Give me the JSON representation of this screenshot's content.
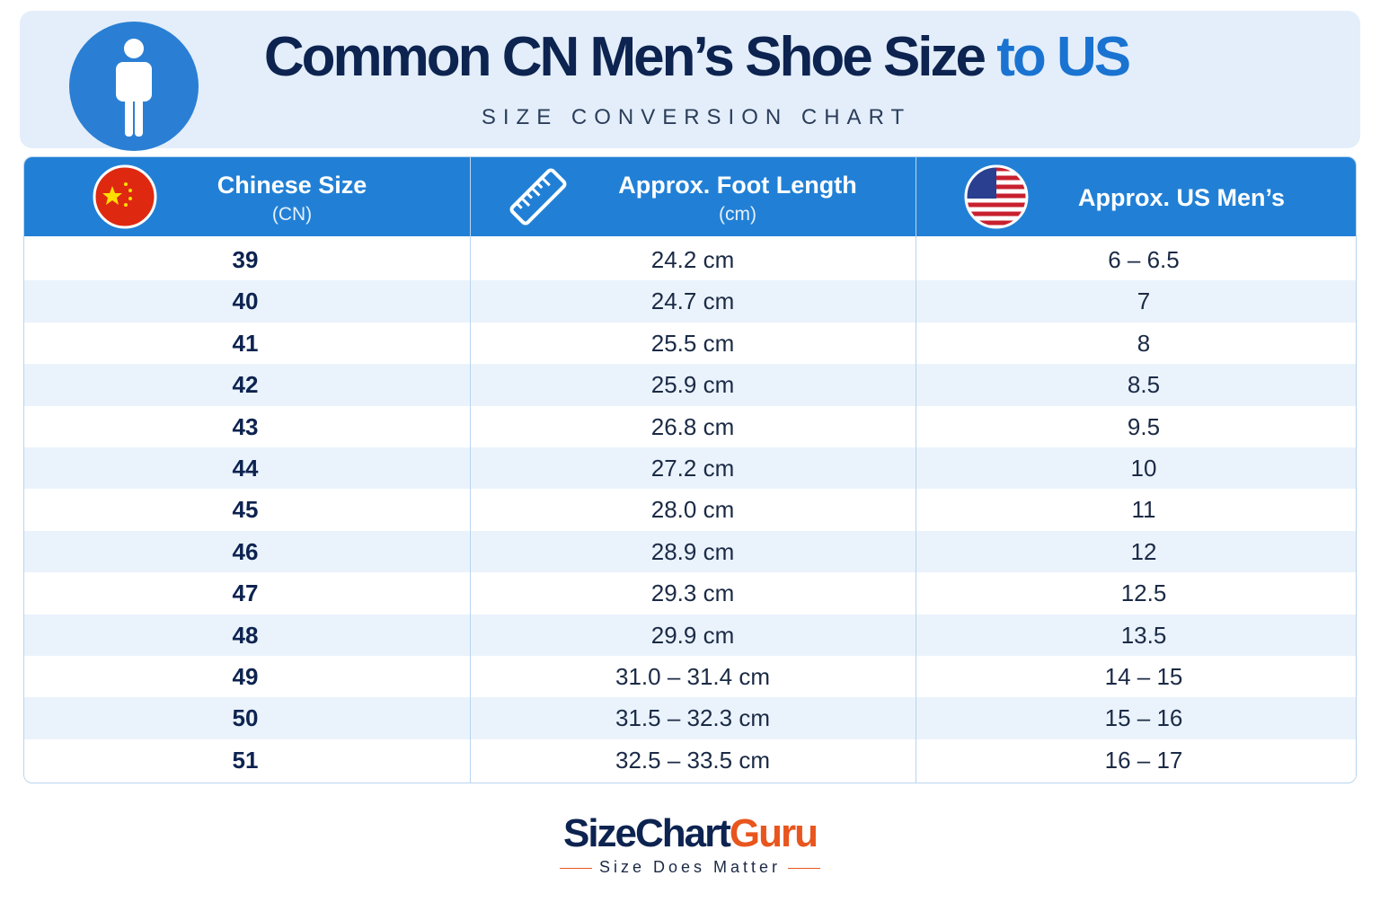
{
  "header": {
    "title_main": "Common CN Men’s Shoe Size",
    "title_accent": "to US",
    "subtitle": "SIZE CONVERSION CHART"
  },
  "table": {
    "columns": [
      {
        "title": "Chinese Size",
        "subtitle": "(CN)"
      },
      {
        "title": "Approx. Foot Length",
        "subtitle": "(cm)"
      },
      {
        "title": "Approx. US Men’s"
      }
    ],
    "rows": [
      [
        "39",
        "24.2 cm",
        "6 – 6.5"
      ],
      [
        "40",
        "24.7 cm",
        "7"
      ],
      [
        "41",
        "25.5 cm",
        "8"
      ],
      [
        "42",
        "25.9 cm",
        "8.5"
      ],
      [
        "43",
        "26.8 cm",
        "9.5"
      ],
      [
        "44",
        "27.2 cm",
        "10"
      ],
      [
        "45",
        "28.0 cm",
        "11"
      ],
      [
        "46",
        "28.9 cm",
        "12"
      ],
      [
        "47",
        "29.3 cm",
        "12.5"
      ],
      [
        "48",
        "29.9 cm",
        "13.5"
      ],
      [
        "49",
        "31.0 – 31.4 cm",
        "14 – 15"
      ],
      [
        "50",
        "31.5 – 32.3 cm",
        "15 – 16"
      ],
      [
        "51",
        "32.5 – 33.5 cm",
        "16 – 17"
      ]
    ]
  },
  "footer": {
    "brand_main": "SizeChart",
    "brand_accent": "Guru",
    "tagline": "Size Does Matter"
  }
}
